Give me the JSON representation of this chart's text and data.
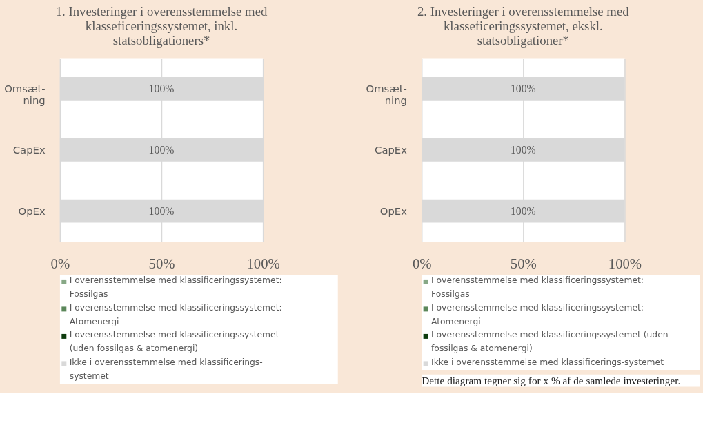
{
  "chart_data": [
    {
      "type": "bar",
      "orientation": "horizontal",
      "stacked": true,
      "title": "1. Investeringer i overensstemmelse med klasseficeringssystemet, inkl. statsobligationers*",
      "categories": [
        "Omsæt-ning",
        "CapEx",
        "OpEx"
      ],
      "xlim": [
        0,
        100
      ],
      "xticks": [
        {
          "value": 0,
          "label": "0%"
        },
        {
          "value": 50,
          "label": "50%"
        },
        {
          "value": 100,
          "label": "100%"
        }
      ],
      "grid": "x",
      "legend": "bottom",
      "series": [
        {
          "name": "I overensstemmelse med klassificeringssystemet: Fossilgas",
          "color": "#87a886",
          "values": [
            0,
            0,
            0
          ]
        },
        {
          "name": "I overensstemmelse med klassificeringssystemet: Atomenergi",
          "color": "#5b875a",
          "values": [
            0,
            0,
            0
          ]
        },
        {
          "name": "I overensstemmelse med klassificeringssystemet (uden fossilgas & atomenergi)",
          "color": "#0d3b0d",
          "values": [
            0,
            0,
            0
          ]
        },
        {
          "name": "Ikke i overensstemmelse med klassificerings-systemet",
          "color": "#d9d9d9",
          "values": [
            100,
            100,
            100
          ],
          "value_labels": [
            "100%",
            "100%",
            "100%"
          ]
        }
      ]
    },
    {
      "type": "bar",
      "orientation": "horizontal",
      "stacked": true,
      "title": "2. Investeringer i overensstemmelse med klasseficeringssystemet, ekskl. statsobligationer*",
      "categories": [
        "Omsæt-ning",
        "CapEx",
        "OpEx"
      ],
      "xlim": [
        0,
        100
      ],
      "xticks": [
        {
          "value": 0,
          "label": "0%"
        },
        {
          "value": 50,
          "label": "50%"
        },
        {
          "value": 100,
          "label": "100%"
        }
      ],
      "grid": "x",
      "legend": "bottom",
      "annotations": [
        "Dette diagram tegner sig for x % af de samlede investeringer."
      ],
      "series": [
        {
          "name": "I overensstemmelse med klassificeringssystemet: Fossilgas",
          "color": "#87a886",
          "values": [
            0,
            0,
            0
          ]
        },
        {
          "name": "I overensstemmelse med klassificeringssystemet: Atomenergi",
          "color": "#5b875a",
          "values": [
            0,
            0,
            0
          ]
        },
        {
          "name": "I overensstemmelse med klassificeringssystemet (uden fossilgas & atomenergi)",
          "color": "#0d3b0d",
          "values": [
            0,
            0,
            0
          ]
        },
        {
          "name": "Ikke i overensstemmelse med klassificerings-systemet",
          "color": "#d9d9d9",
          "values": [
            100,
            100,
            100
          ],
          "value_labels": [
            "100%",
            "100%",
            "100%"
          ]
        }
      ]
    }
  ]
}
